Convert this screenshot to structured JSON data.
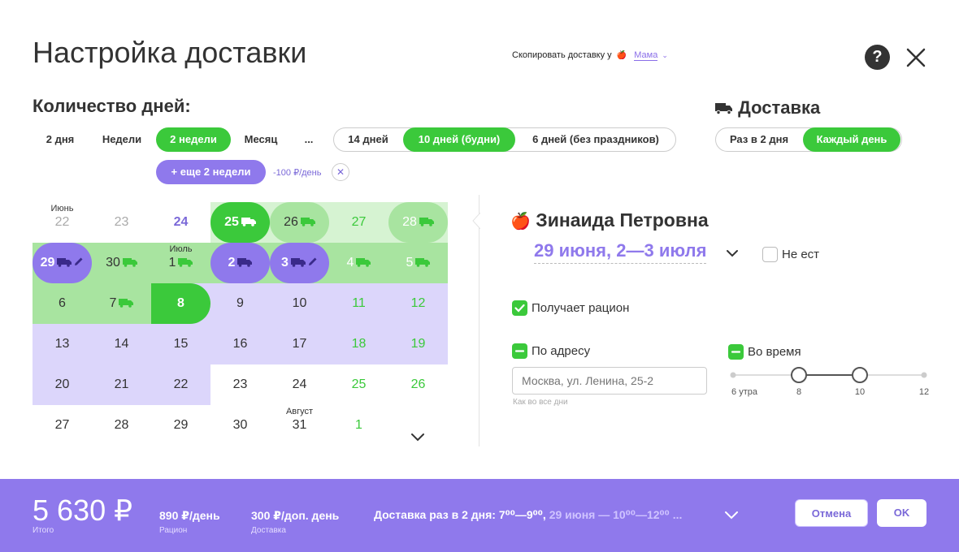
{
  "header": {
    "title": "Настройка доставки",
    "copy_label": "Скопировать доставку у",
    "copy_person": "Мама",
    "help_label": "?"
  },
  "days": {
    "heading": "Количество дней:",
    "options": [
      "2 дня",
      "Недели",
      "2 недели",
      "Месяц",
      "..."
    ],
    "selected": "2 недели",
    "mode_options": [
      "14 дней",
      "10 дней (будни)",
      "6 дней (без праздников)"
    ],
    "mode_selected": "10 дней (будни)",
    "extra_button": "+ еще 2 недели",
    "extra_surcharge": "-100 ₽/день"
  },
  "delivery": {
    "heading": "Доставка",
    "options": [
      "Раз в 2 дня",
      "Каждый день"
    ],
    "selected": "Каждый день"
  },
  "calendar": {
    "month_labels": [
      {
        "text": "Июнь",
        "row": 0,
        "col": 0
      },
      {
        "text": "Июль",
        "row": 1,
        "col": 2
      },
      {
        "text": "Август",
        "row": 5,
        "col": 4
      }
    ],
    "rows": [
      [
        {
          "d": "22",
          "s": "muted"
        },
        {
          "d": "23",
          "s": "muted"
        },
        {
          "d": "24",
          "s": "purple-text"
        },
        {
          "d": "25",
          "s": "green-strong",
          "truck": true
        },
        {
          "d": "26",
          "s": "green-mid",
          "truck": true
        },
        {
          "d": "27",
          "s": "green-light-text"
        },
        {
          "d": "28",
          "s": "green-mid-text",
          "truck": true
        }
      ],
      [
        {
          "d": "29",
          "s": "purple-strong",
          "truck": true,
          "edit": true
        },
        {
          "d": "30",
          "s": "green-mid",
          "truck": true
        },
        {
          "d": "1",
          "s": "green-mid",
          "truck": true
        },
        {
          "d": "2",
          "s": "purple-strong",
          "truck": true
        },
        {
          "d": "3",
          "s": "purple-strong",
          "truck": true,
          "edit": true
        },
        {
          "d": "4",
          "s": "green-mid-text",
          "truck": true
        },
        {
          "d": "5",
          "s": "green-mid-text",
          "truck": true
        }
      ],
      [
        {
          "d": "6",
          "s": "green-mid"
        },
        {
          "d": "7",
          "s": "plain",
          "truck": true
        },
        {
          "d": "8",
          "s": "green-today"
        },
        {
          "d": "9",
          "s": "lilac"
        },
        {
          "d": "10",
          "s": "lilac"
        },
        {
          "d": "11",
          "s": "lilac-green"
        },
        {
          "d": "12",
          "s": "lilac-green"
        }
      ],
      [
        {
          "d": "13",
          "s": "lilac"
        },
        {
          "d": "14",
          "s": "lilac"
        },
        {
          "d": "15",
          "s": "lilac"
        },
        {
          "d": "16",
          "s": "lilac"
        },
        {
          "d": "17",
          "s": "lilac"
        },
        {
          "d": "18",
          "s": "lilac-green"
        },
        {
          "d": "19",
          "s": "lilac-green"
        }
      ],
      [
        {
          "d": "20",
          "s": "lilac"
        },
        {
          "d": "21",
          "s": "lilac"
        },
        {
          "d": "22",
          "s": "lilac"
        },
        {
          "d": "23",
          "s": "plain"
        },
        {
          "d": "24",
          "s": "plain"
        },
        {
          "d": "25",
          "s": "green-text"
        },
        {
          "d": "26",
          "s": "green-text"
        }
      ],
      [
        {
          "d": "27",
          "s": "plain"
        },
        {
          "d": "28",
          "s": "plain"
        },
        {
          "d": "29",
          "s": "plain"
        },
        {
          "d": "30",
          "s": "plain"
        },
        {
          "d": "31",
          "s": "plain"
        },
        {
          "d": "1",
          "s": "green-text"
        },
        {
          "d": "",
          "s": "plain"
        }
      ]
    ]
  },
  "person": {
    "name": "Зинаида Петровна",
    "dates": "29 июня, 2—3 июля",
    "not_eating": "Не ест",
    "gets_ration": "Получает рацион",
    "by_address": "По адресу",
    "address_placeholder": "Москва, ул. Ленина, 25-2",
    "address_hint": "Как во все дни",
    "on_time": "Во время",
    "time_ticks": [
      "6 утра",
      "8",
      "10",
      "12"
    ],
    "time_range": [
      "8",
      "10"
    ]
  },
  "footer": {
    "total": "5 630 ₽",
    "total_label": "Итого",
    "ration_value": "890 ₽/день",
    "ration_label": "Рацион",
    "delivery_value": "300 ₽/доп. день",
    "delivery_label": "Доставка",
    "summary_main": "Доставка раз в 2 дня: 7⁰⁰—9⁰⁰, ",
    "summary_dim": "29 июня — 10⁰⁰—12⁰⁰ ...",
    "cancel": "Отмена",
    "ok": "OK"
  },
  "colors": {
    "green": "#3bc93b",
    "green_mid": "#a8e4a0",
    "green_light": "#d6f3d2",
    "purple": "#8f79ec",
    "lilac": "#dcd6fb"
  }
}
